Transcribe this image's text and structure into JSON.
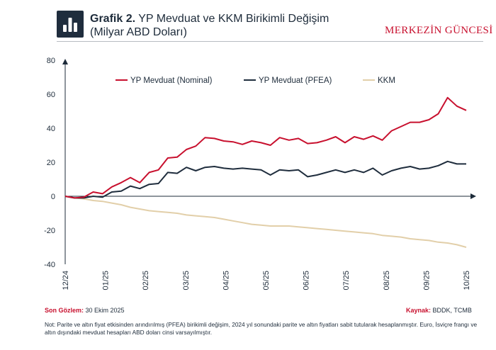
{
  "header": {
    "title_prefix": "Grafik 2.",
    "title_main": "YP Mevduat ve KKM Birikimli Değişim",
    "title_sub": "(Milyar ABD Doları)",
    "brand": "MERKEZİN GÜNCESİ"
  },
  "footer": {
    "obs_label": "Son Gözlem:",
    "obs_value": "30 Ekim 2025",
    "source_label": "Kaynak:",
    "source_value": "BDDK, TCMB",
    "note": "Not: Parite ve altın fiyat etkisinden arındırılmış (PFEA) birikimli değişim, 2024 yıl sonundaki parite ve altın fiyatları sabit tutularak hesaplanmıştır. Euro, İsviçre frangı ve altın dışındaki mevduat hesapları ABD doları cinsi varsayılmıştır."
  },
  "colors": {
    "nominal": "#c8102e",
    "pfea": "#1f2d3d",
    "kkm": "#e2cfa9",
    "axis": "#1d2b3a",
    "brand": "#c8102e"
  },
  "chart_data": {
    "type": "line",
    "title": "YP Mevduat ve KKM Birikimli Değişim (Milyar ABD Doları)",
    "xlabel": "",
    "ylabel": "",
    "ylim": [
      -40,
      80
    ],
    "yticks": [
      80,
      60,
      40,
      20,
      0,
      -20,
      -40
    ],
    "x_tick_labels": [
      "12/24",
      "01/25",
      "02/25",
      "03/25",
      "04/25",
      "05/25",
      "06/25",
      "07/25",
      "08/25",
      "09/25",
      "10/25"
    ],
    "n_points": 44,
    "legend_position": "top",
    "series": [
      {
        "key": "nominal",
        "name": "YP Mevduat (Nominal)",
        "values": [
          0,
          -1,
          -0.5,
          2.5,
          1.5,
          5.5,
          8,
          11,
          8,
          14,
          15.5,
          22.5,
          23,
          27.5,
          29.5,
          34.5,
          34,
          32.5,
          32,
          30.5,
          32.5,
          31.5,
          30,
          34.5,
          33,
          34,
          31,
          31.5,
          33,
          35,
          31.5,
          35,
          33.5,
          35.5,
          33,
          38.5,
          41,
          43.5,
          43.5,
          45,
          48.5,
          58,
          53,
          50.5
        ]
      },
      {
        "key": "pfea",
        "name": "YP Mevduat (PFEA)",
        "values": [
          0,
          -1,
          -1,
          0,
          -0.5,
          2.5,
          3,
          6,
          4.5,
          7,
          7.5,
          14,
          13.5,
          17,
          15,
          17,
          17.5,
          16.5,
          16,
          16.5,
          16,
          15.5,
          12.5,
          15.5,
          15,
          15.5,
          11.5,
          12.5,
          14,
          15.5,
          14,
          15.5,
          14,
          16.5,
          12.5,
          15,
          16.5,
          17.5,
          16,
          16.5,
          18,
          20.5,
          19,
          19
        ]
      },
      {
        "key": "kkm",
        "name": "KKM",
        "values": [
          0,
          -1,
          -1.5,
          -2.5,
          -3,
          -4,
          -5,
          -6.5,
          -7.5,
          -8.5,
          -9,
          -9.5,
          -10,
          -11,
          -11.5,
          -12,
          -12.5,
          -13.5,
          -14.5,
          -15.5,
          -16.5,
          -17,
          -17.5,
          -17.5,
          -17.5,
          -18,
          -18.5,
          -19,
          -19.5,
          -20,
          -20.5,
          -21,
          -21.5,
          -22,
          -23,
          -23.5,
          -24,
          -25,
          -25.5,
          -26,
          -27,
          -27.5,
          -28.5,
          -30
        ]
      }
    ]
  }
}
